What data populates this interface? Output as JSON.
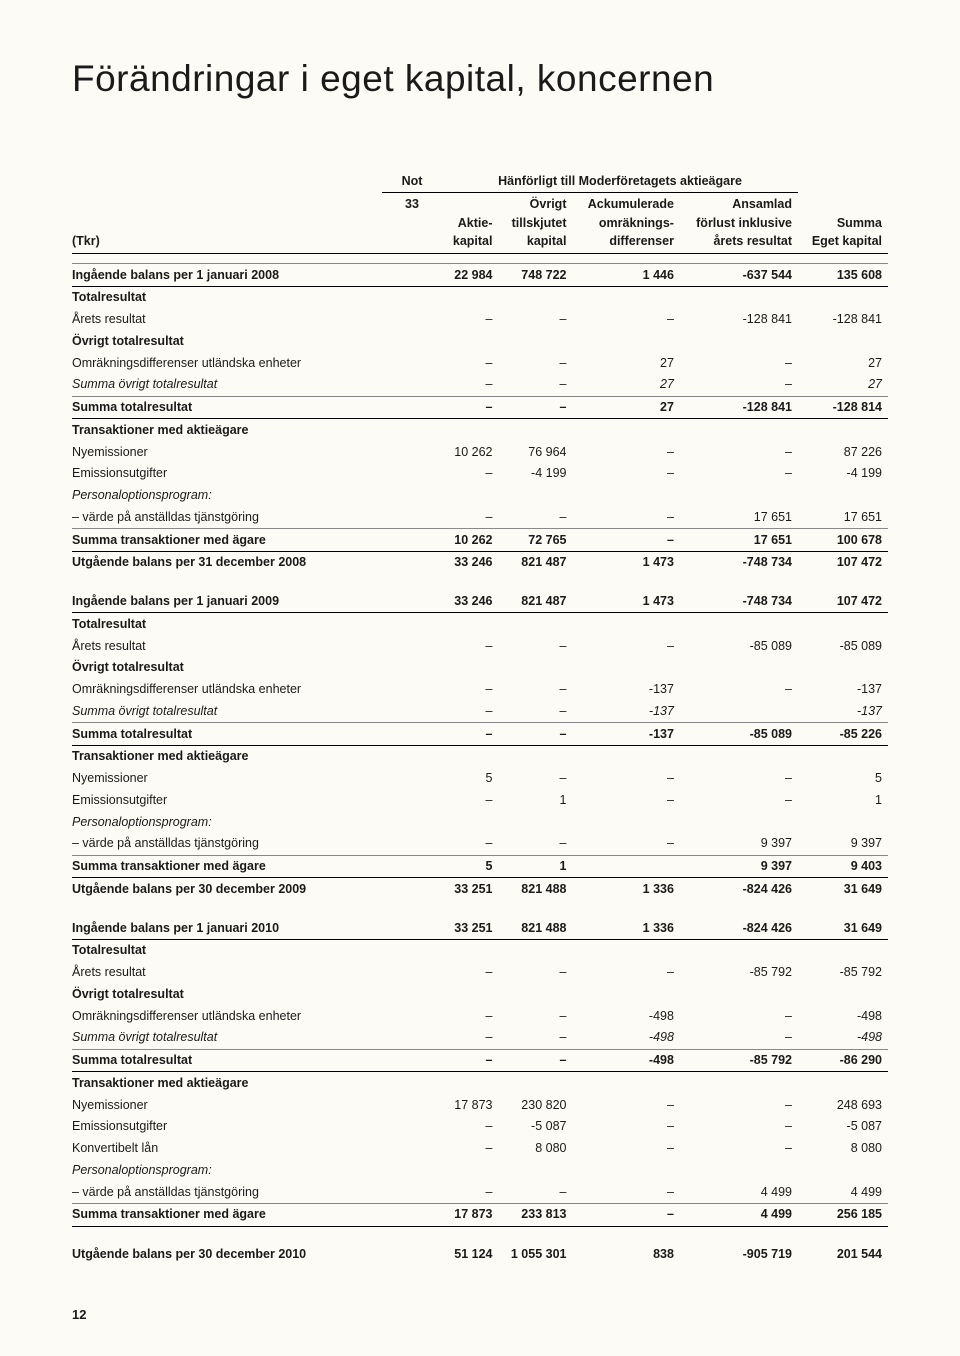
{
  "title": "Förändringar i eget kapital, koncernen",
  "pagenum": "12",
  "header": {
    "not": "Not",
    "note_ref": "33",
    "span": "Hänförligt till Moderföretagets aktieägare",
    "tkr": "(Tkr)",
    "cols": [
      "Aktie-\nkapital",
      "Övrigt\ntillskjutet\nkapital",
      "Ackumulerade\nomräknings-\ndifferenser",
      "Ansamlad\nförlust inklusive\nårets resultat",
      "Summa\nEget kapital"
    ]
  },
  "rows": [
    {
      "cls": "bold hair-strong rule-above",
      "label": "Ingående balans per 1 januari 2008",
      "v": [
        "22 984",
        "748 722",
        "1 446",
        "-637 544",
        "135 608"
      ]
    },
    {
      "cls": "section",
      "label": "Totalresultat",
      "v": [
        "",
        "",
        "",
        "",
        ""
      ]
    },
    {
      "cls": "",
      "label": "Årets resultat",
      "v": [
        "–",
        "–",
        "–",
        "-128 841",
        "-128 841"
      ]
    },
    {
      "cls": "section",
      "label": "Övrigt totalresultat",
      "v": [
        "",
        "",
        "",
        "",
        ""
      ]
    },
    {
      "cls": "",
      "label": "Omräkningsdifferenser utländska enheter",
      "v": [
        "–",
        "–",
        "27",
        "–",
        "27"
      ]
    },
    {
      "cls": "ital hair",
      "label": "Summa övrigt totalresultat",
      "v": [
        "–",
        "–",
        "27",
        "–",
        "27"
      ]
    },
    {
      "cls": "bold hair-strong",
      "label": "Summa totalresultat",
      "v": [
        "–",
        "–",
        "27",
        "-128 841",
        "-128 814"
      ]
    },
    {
      "cls": "section",
      "label": "Transaktioner med aktieägare",
      "v": [
        "",
        "",
        "",
        "",
        ""
      ]
    },
    {
      "cls": "",
      "label": "Nyemissioner",
      "v": [
        "10 262",
        "76 964",
        "–",
        "–",
        "87 226"
      ]
    },
    {
      "cls": "",
      "label": "Emissionsutgifter",
      "v": [
        "–",
        "-4 199",
        "–",
        "–",
        "-4 199"
      ]
    },
    {
      "cls": "ital",
      "label": "Personaloptionsprogram:",
      "v": [
        "",
        "",
        "",
        "",
        ""
      ]
    },
    {
      "cls": "hair",
      "label": "– värde på anställdas tjänstgöring",
      "v": [
        "–",
        "–",
        "–",
        "17 651",
        "17 651"
      ]
    },
    {
      "cls": "bold hair-strong",
      "label": "Summa transaktioner med ägare",
      "v": [
        "10 262",
        "72 765",
        "–",
        "17 651",
        "100 678"
      ]
    },
    {
      "cls": "bold",
      "label": "Utgående balans per 31 december 2008",
      "v": [
        "33 246",
        "821 487",
        "1 473",
        "-748 734",
        "107 472"
      ]
    },
    {
      "cls": "spacer",
      "label": "",
      "v": [
        "",
        "",
        "",
        "",
        ""
      ]
    },
    {
      "cls": "bold hair-strong",
      "label": "Ingående balans per 1 januari 2009",
      "v": [
        "33 246",
        "821 487",
        "1 473",
        "-748 734",
        "107 472"
      ]
    },
    {
      "cls": "section",
      "label": "Totalresultat",
      "v": [
        "",
        "",
        "",
        "",
        ""
      ]
    },
    {
      "cls": "",
      "label": "Årets resultat",
      "v": [
        "–",
        "–",
        "–",
        "-85 089",
        "-85 089"
      ]
    },
    {
      "cls": "section",
      "label": "Övrigt totalresultat",
      "v": [
        "",
        "",
        "",
        "",
        ""
      ]
    },
    {
      "cls": "",
      "label": "Omräkningsdifferenser utländska enheter",
      "v": [
        "–",
        "–",
        "-137",
        "–",
        "-137"
      ]
    },
    {
      "cls": "ital hair",
      "label": "Summa övrigt totalresultat",
      "v": [
        "–",
        "–",
        "-137",
        "",
        "-137"
      ]
    },
    {
      "cls": "bold hair-strong",
      "label": "Summa totalresultat",
      "v": [
        "–",
        "–",
        "-137",
        "-85 089",
        "-85 226"
      ]
    },
    {
      "cls": "section",
      "label": "Transaktioner med aktieägare",
      "v": [
        "",
        "",
        "",
        "",
        ""
      ]
    },
    {
      "cls": "",
      "label": "Nyemissioner",
      "v": [
        "5",
        "–",
        "–",
        "–",
        "5"
      ]
    },
    {
      "cls": "",
      "label": "Emissionsutgifter",
      "v": [
        "–",
        "1",
        "–",
        "–",
        "1"
      ]
    },
    {
      "cls": "ital",
      "label": "Personaloptionsprogram:",
      "v": [
        "",
        "",
        "",
        "",
        ""
      ]
    },
    {
      "cls": "hair",
      "label": "– värde på anställdas tjänstgöring",
      "v": [
        "–",
        "–",
        "–",
        "9 397",
        "9 397"
      ]
    },
    {
      "cls": "bold hair-strong",
      "label": "Summa transaktioner med ägare",
      "v": [
        "5",
        "1",
        "",
        "9 397",
        "9 403"
      ]
    },
    {
      "cls": "bold",
      "label": "Utgående balans per 30 december 2009",
      "v": [
        "33 251",
        "821 488",
        "1 336",
        "-824 426",
        "31 649"
      ]
    },
    {
      "cls": "spacer",
      "label": "",
      "v": [
        "",
        "",
        "",
        "",
        ""
      ]
    },
    {
      "cls": "bold hair-strong",
      "label": "Ingående balans per 1 januari 2010",
      "v": [
        "33 251",
        "821 488",
        "1 336",
        "-824 426",
        "31 649"
      ]
    },
    {
      "cls": "section",
      "label": "Totalresultat",
      "v": [
        "",
        "",
        "",
        "",
        ""
      ]
    },
    {
      "cls": "",
      "label": "Årets resultat",
      "v": [
        "–",
        "–",
        "–",
        "-85 792",
        "-85 792"
      ]
    },
    {
      "cls": "section",
      "label": "Övrigt totalresultat",
      "v": [
        "",
        "",
        "",
        "",
        ""
      ]
    },
    {
      "cls": "",
      "label": "Omräkningsdifferenser utländska enheter",
      "v": [
        "–",
        "–",
        "-498",
        "–",
        "-498"
      ]
    },
    {
      "cls": "ital hair",
      "label": "Summa övrigt totalresultat",
      "v": [
        "–",
        "–",
        "-498",
        "–",
        "-498"
      ]
    },
    {
      "cls": "bold hair-strong",
      "label": "Summa totalresultat",
      "v": [
        "–",
        "–",
        "-498",
        "-85 792",
        "-86 290"
      ]
    },
    {
      "cls": "section",
      "label": "Transaktioner med aktieägare",
      "v": [
        "",
        "",
        "",
        "",
        ""
      ]
    },
    {
      "cls": "",
      "label": "Nyemissioner",
      "v": [
        "17 873",
        "230 820",
        "–",
        "–",
        "248 693"
      ]
    },
    {
      "cls": "",
      "label": "Emissionsutgifter",
      "v": [
        "–",
        "-5 087",
        "–",
        "–",
        "-5 087"
      ]
    },
    {
      "cls": "",
      "label": "Konvertibelt lån",
      "v": [
        "–",
        "8 080",
        "–",
        "–",
        "8 080"
      ]
    },
    {
      "cls": "ital",
      "label": "Personaloptionsprogram:",
      "v": [
        "",
        "",
        "",
        "",
        ""
      ]
    },
    {
      "cls": "hair",
      "label": "– värde på anställdas tjänstgöring",
      "v": [
        "–",
        "–",
        "–",
        "4 499",
        "4 499"
      ]
    },
    {
      "cls": "bold hair-strong",
      "label": "Summa transaktioner med ägare",
      "v": [
        "17 873",
        "233 813",
        "–",
        "4 499",
        "256 185"
      ]
    },
    {
      "cls": "spacer",
      "label": "",
      "v": [
        "",
        "",
        "",
        "",
        ""
      ]
    },
    {
      "cls": "bold",
      "label": "Utgående balans per 30 december 2010",
      "v": [
        "51 124",
        "1 055 301",
        "838",
        "-905 719",
        "201 544"
      ]
    }
  ]
}
